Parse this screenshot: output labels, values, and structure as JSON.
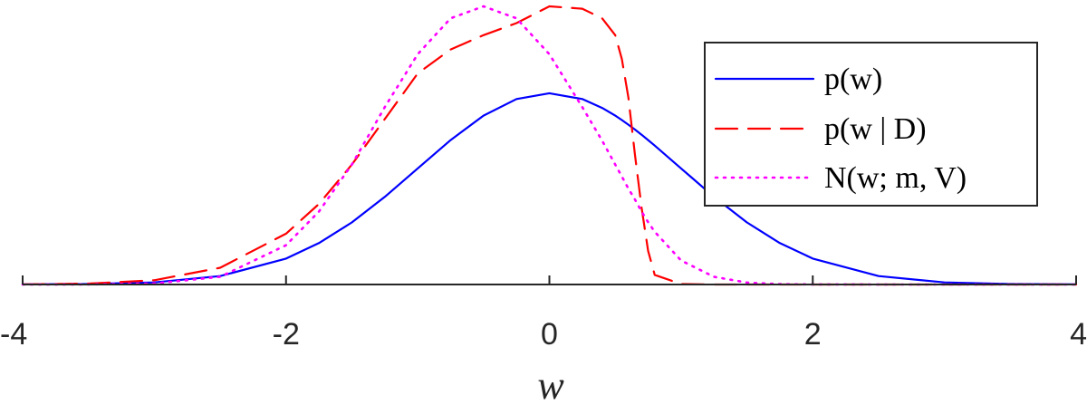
{
  "chart_data": {
    "type": "line",
    "title": "",
    "xlabel": "w",
    "ylabel": "",
    "xlim": [
      -4,
      4
    ],
    "ylim": [
      0,
      0.58
    ],
    "xticks": [
      "-4",
      "-2",
      "0",
      "2",
      "4"
    ],
    "yticks": [],
    "grid": false,
    "legend_position": "top-right",
    "x": [
      -4,
      -3.5,
      -3,
      -2.5,
      -2,
      -1.75,
      -1.5,
      -1.25,
      -1,
      -0.75,
      -0.5,
      -0.25,
      0,
      0.25,
      0.4,
      0.5,
      0.55,
      0.6,
      0.65,
      0.7,
      0.75,
      0.8,
      1,
      1.25,
      1.5,
      1.75,
      2,
      2.5,
      3,
      3.5,
      4
    ],
    "series": [
      {
        "name": "p(w)",
        "color": "#0000ff",
        "style": "solid",
        "values": [
          0.0001,
          0.0009,
          0.0044,
          0.0175,
          0.054,
          0.0863,
          0.1295,
          0.1826,
          0.242,
          0.3011,
          0.3521,
          0.3867,
          0.3989,
          0.3867,
          0.3683,
          0.3521,
          0.3429,
          0.3332,
          0.323,
          0.3123,
          0.3011,
          0.2897,
          0.242,
          0.1826,
          0.1295,
          0.0863,
          0.054,
          0.0175,
          0.0044,
          0.0009,
          0.0001
        ]
      },
      {
        "name": "p(w | D)",
        "color": "#ff0000",
        "style": "dashed",
        "values": [
          0.0002,
          0.0018,
          0.0088,
          0.035,
          0.106,
          0.168,
          0.25,
          0.345,
          0.44,
          0.49,
          0.52,
          0.545,
          0.58,
          0.575,
          0.555,
          0.52,
          0.47,
          0.39,
          0.27,
          0.16,
          0.07,
          0.02,
          0.001,
          0,
          0,
          0,
          0,
          0,
          0,
          0,
          0
        ]
      },
      {
        "name": "N(w; m, V)",
        "color": "#ff00ff",
        "style": "dotted",
        "values": [
          0,
          0.0002,
          0.002,
          0.016,
          0.082,
          0.152,
          0.25,
          0.37,
          0.48,
          0.555,
          0.58,
          0.555,
          0.48,
          0.37,
          0.3,
          0.25,
          0.225,
          0.2,
          0.177,
          0.152,
          0.13,
          0.11,
          0.05,
          0.016,
          0.004,
          0.0008,
          0.0002,
          0,
          0,
          0,
          0
        ]
      }
    ]
  }
}
